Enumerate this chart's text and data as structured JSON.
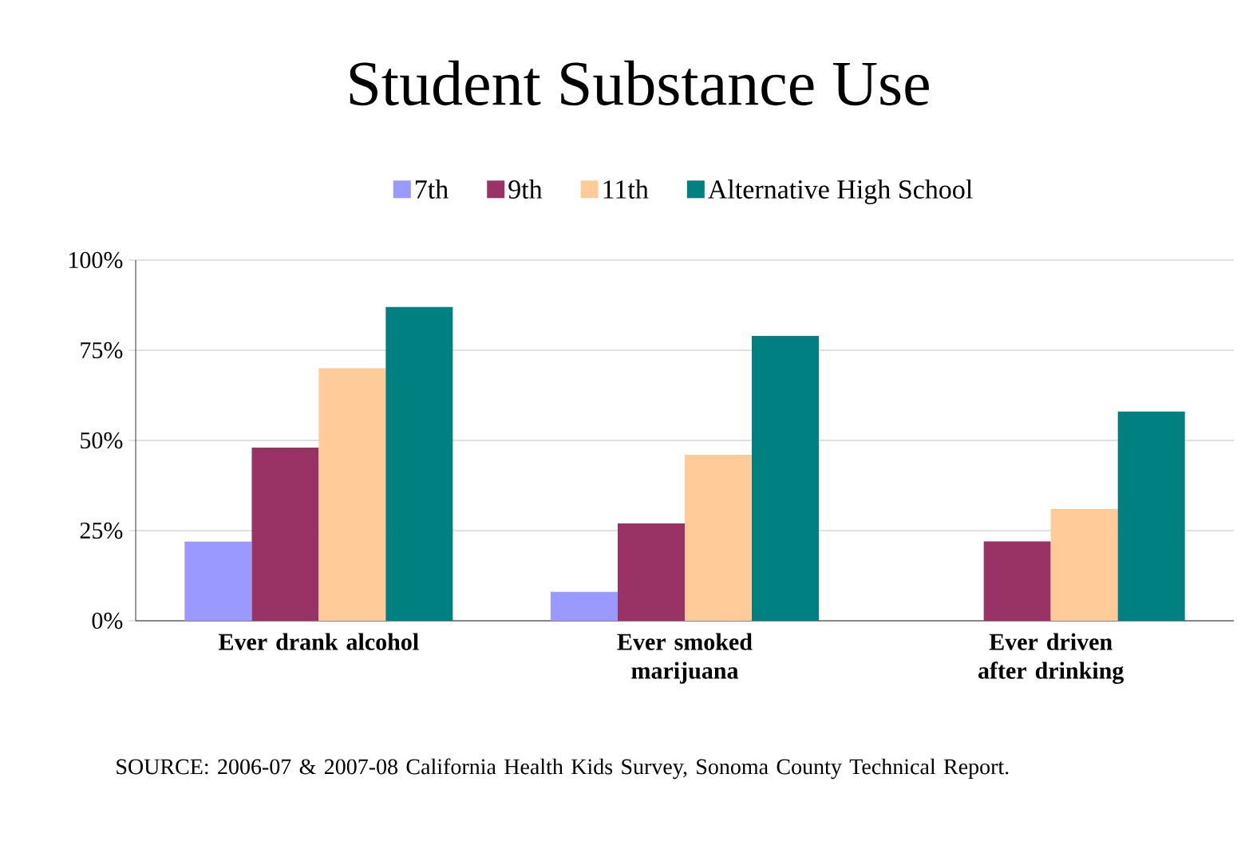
{
  "chart_data": {
    "type": "bar",
    "title": "Student Substance Use",
    "categories": [
      "Ever drank alcohol",
      "Ever smoked marijuana",
      "Ever driven after drinking"
    ],
    "series": [
      {
        "name": "7th",
        "color": "#9999ff",
        "values": [
          22,
          8,
          null
        ]
      },
      {
        "name": "9th",
        "color": "#993366",
        "values": [
          48,
          27,
          22
        ]
      },
      {
        "name": "11th",
        "color": "#ffcc99",
        "values": [
          70,
          46,
          31
        ]
      },
      {
        "name": "Alternative High School",
        "color": "#008080",
        "values": [
          87,
          79,
          58
        ]
      }
    ],
    "ylim": [
      0,
      100
    ],
    "yticks": [
      {
        "value": 0,
        "label": "0%"
      },
      {
        "value": 25,
        "label": "25%"
      },
      {
        "value": 50,
        "label": "50%"
      },
      {
        "value": 75,
        "label": "75%"
      },
      {
        "value": 100,
        "label": "100%"
      }
    ],
    "grid": "y",
    "legend": "top",
    "annotations": [
      "SOURCE:  2006-07 & 2007-08 California Health Kids Survey, Sonoma County Technical Report."
    ]
  }
}
